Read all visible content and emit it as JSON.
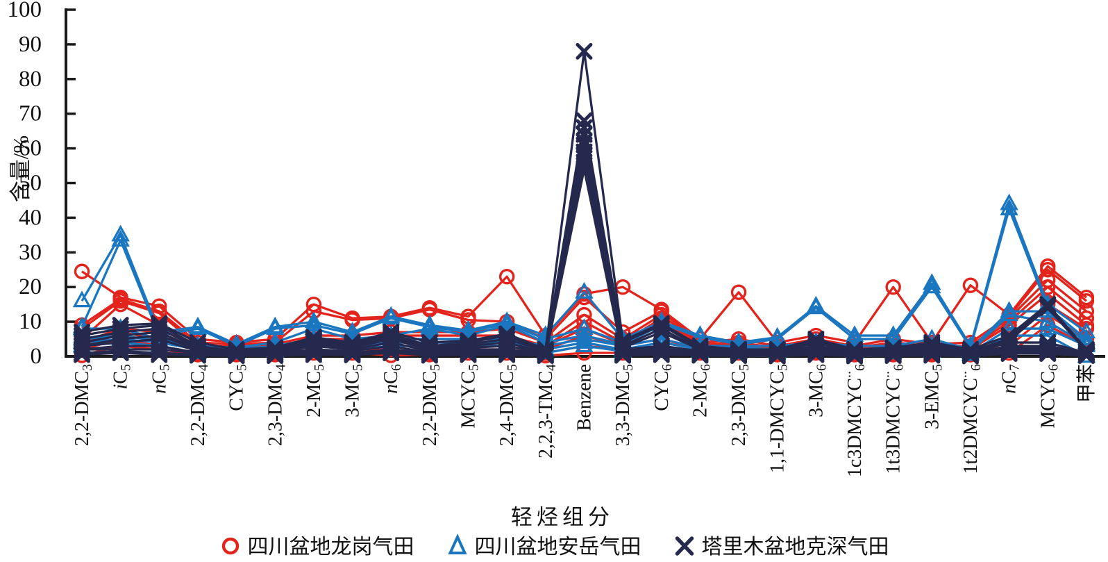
{
  "chart_data": {
    "type": "line",
    "title": "",
    "xlabel": "轻烃组分",
    "ylabel": "含量/%",
    "ylim": [
      0,
      100
    ],
    "yticks": [
      0,
      10,
      20,
      30,
      40,
      50,
      60,
      70,
      80,
      90,
      100
    ],
    "grid": false,
    "legend_position": "bottom",
    "axis_color": "#1a1a1a",
    "categories": [
      [
        {
          "t": "2,2-DMC"
        },
        {
          "t": "3",
          "sub": true
        }
      ],
      [
        {
          "t": "i",
          "i": true
        },
        {
          "t": "C"
        },
        {
          "t": "5",
          "sub": true
        }
      ],
      [
        {
          "t": "n",
          "i": true
        },
        {
          "t": "C"
        },
        {
          "t": "5",
          "sub": true
        }
      ],
      [
        {
          "t": "2,2-DMC"
        },
        {
          "t": "4",
          "sub": true
        }
      ],
      [
        {
          "t": "CYC"
        },
        {
          "t": "5",
          "sub": true
        }
      ],
      [
        {
          "t": "2,3-DMC"
        },
        {
          "t": "4",
          "sub": true
        }
      ],
      [
        {
          "t": "2-MC"
        },
        {
          "t": "5",
          "sub": true
        }
      ],
      [
        {
          "t": "3-MC"
        },
        {
          "t": "5",
          "sub": true
        }
      ],
      [
        {
          "t": "n",
          "i": true
        },
        {
          "t": "C"
        },
        {
          "t": "6",
          "sub": true
        }
      ],
      [
        {
          "t": "2,2-DMC"
        },
        {
          "t": "5",
          "sub": true
        }
      ],
      [
        {
          "t": "MCYC"
        },
        {
          "t": "5",
          "sub": true
        }
      ],
      [
        {
          "t": "2,4-DMC"
        },
        {
          "t": "5",
          "sub": true
        }
      ],
      [
        {
          "t": "2,2,3-TMC"
        },
        {
          "t": "4",
          "sub": true
        }
      ],
      [
        {
          "t": "Benzene"
        }
      ],
      [
        {
          "t": "3,3-DMC"
        },
        {
          "t": "5",
          "sub": true
        }
      ],
      [
        {
          "t": "CYC"
        },
        {
          "t": "6",
          "sub": true
        }
      ],
      [
        {
          "t": "2-MC"
        },
        {
          "t": "6",
          "sub": true
        }
      ],
      [
        {
          "t": "2,3-DMC"
        },
        {
          "t": "5",
          "sub": true
        }
      ],
      [
        {
          "t": "1,1-DMCYC"
        },
        {
          "t": "5",
          "sub": true
        }
      ],
      [
        {
          "t": "3-MC"
        },
        {
          "t": "6",
          "sub": true
        }
      ],
      [
        {
          "t": "1c3DMCYC"
        },
        {
          "t": "..",
          "sup": true
        },
        {
          "t": "6",
          "sub": true
        }
      ],
      [
        {
          "t": "1t3DMCYC"
        },
        {
          "t": "..",
          "sup": true
        },
        {
          "t": "6",
          "sub": true
        }
      ],
      [
        {
          "t": "3-EMC"
        },
        {
          "t": "5",
          "sub": true
        }
      ],
      [
        {
          "t": "1t2DMCYC"
        },
        {
          "t": "..",
          "sup": true
        },
        {
          "t": "6",
          "sub": true
        }
      ],
      [
        {
          "t": "n",
          "i": true
        },
        {
          "t": "C"
        },
        {
          "t": "7",
          "sub": true
        }
      ],
      [
        {
          "t": "MCYC"
        },
        {
          "t": "6",
          "sub": true
        }
      ],
      [
        {
          "t": "甲苯"
        }
      ]
    ],
    "series": [
      {
        "name": "四川盆地龙岗气田",
        "marker": "circle",
        "color": "#e2241d",
        "lines": [
          [
            24.5,
            17,
            14.5,
            5,
            4,
            5,
            15,
            11,
            11.5,
            14,
            11.5,
            23,
            6,
            18,
            20,
            13.5,
            5,
            18.5,
            4,
            6,
            4,
            20,
            4,
            20.5,
            12,
            26,
            17
          ],
          [
            9,
            16.5,
            13,
            4,
            3.5,
            4,
            13,
            10.5,
            11,
            13.5,
            10.5,
            10,
            5,
            17,
            7,
            13,
            4,
            5,
            3,
            5,
            3,
            5,
            3.5,
            4,
            11.5,
            25,
            16
          ],
          [
            8,
            16,
            12.5,
            3,
            3,
            3.5,
            6,
            6,
            7,
            7,
            7,
            8,
            4,
            12,
            5,
            12,
            3.5,
            4,
            2.5,
            4,
            2.5,
            4,
            3,
            3,
            11,
            22,
            13
          ],
          [
            5,
            15,
            9,
            2.5,
            2.5,
            3,
            5,
            5,
            6,
            6,
            6,
            6,
            3,
            10,
            4,
            11,
            3,
            3.5,
            2,
            3.5,
            2,
            3,
            2.5,
            2.5,
            10,
            20,
            11
          ],
          [
            4,
            8,
            7,
            2,
            2,
            2.5,
            4,
            4,
            5,
            5,
            5,
            5,
            3,
            8,
            3.5,
            10.5,
            2.5,
            3,
            2,
            3,
            1.5,
            2.5,
            2,
            2,
            9,
            18,
            9
          ],
          [
            3,
            7,
            5,
            1.5,
            2,
            2,
            3.5,
            3,
            4,
            4,
            4,
            4,
            2,
            6,
            3,
            5,
            2,
            2.5,
            1.5,
            2,
            1,
            2,
            1.5,
            1.5,
            5,
            15,
            8
          ],
          [
            2,
            5,
            3,
            1,
            1,
            1,
            3,
            2,
            2,
            1,
            2,
            2,
            1,
            3,
            2,
            3,
            1.5,
            2,
            1,
            1.5,
            1,
            1,
            1,
            1,
            3,
            12,
            5
          ],
          [
            0.3,
            3,
            2,
            0.5,
            0.5,
            0.5,
            1,
            1,
            0.3,
            0.5,
            1,
            1,
            0.2,
            1,
            1,
            2,
            1,
            1,
            0.5,
            1,
            0.5,
            0.5,
            0.5,
            0.5,
            1,
            9,
            3
          ]
        ]
      },
      {
        "name": "四川盆地安岳气田",
        "marker": "triangle",
        "color": "#1b76c0",
        "lines": [
          [
            16,
            35,
            7,
            8.5,
            3.5,
            8.5,
            10,
            7,
            11.5,
            9,
            7.5,
            10,
            6,
            18.5,
            5,
            10,
            6,
            4,
            5.5,
            14.5,
            6,
            6,
            21,
            3,
            44,
            15,
            7
          ],
          [
            8.5,
            33.5,
            6,
            8,
            3,
            8,
            9,
            6.5,
            11,
            8.5,
            7,
            9.5,
            5,
            8,
            4,
            9.5,
            5.5,
            3.5,
            5,
            14,
            5,
            5,
            20,
            2.5,
            42.5,
            14,
            5
          ],
          [
            8,
            8,
            5,
            3,
            2.5,
            4,
            8,
            5,
            6,
            8,
            6,
            9,
            4,
            6,
            3.5,
            9,
            3,
            3,
            3,
            4,
            3,
            3,
            5,
            2,
            13,
            13,
            4
          ],
          [
            5,
            6,
            4.5,
            2.5,
            2,
            3,
            5,
            4,
            5,
            5,
            5,
            5,
            3,
            5,
            3,
            5,
            2.5,
            2.5,
            2,
            3,
            2,
            2.5,
            3,
            1.5,
            12,
            10,
            3.5
          ],
          [
            4,
            5,
            4,
            2,
            2,
            2,
            4,
            3,
            4,
            4,
            4,
            4,
            2,
            4,
            2,
            4,
            2,
            2,
            1.5,
            2.5,
            1.5,
            2,
            2,
            1,
            8,
            8,
            3
          ],
          [
            3,
            4,
            3,
            1,
            1,
            1.5,
            3,
            2,
            3,
            3,
            3,
            3,
            1,
            3,
            1.5,
            3,
            1.5,
            1,
            1,
            2,
            1,
            1,
            1.5,
            0.5,
            6,
            6,
            0
          ]
        ]
      },
      {
        "name": "塔里木盆地克深气田",
        "marker": "x",
        "color": "#25294e",
        "lines": [
          [
            7,
            9,
            9.5,
            4,
            2,
            2.5,
            5.5,
            4,
            7,
            4,
            4.5,
            6.5,
            2,
            88,
            4.5,
            9.5,
            3,
            2,
            2,
            5,
            2,
            2.5,
            4,
            2,
            6,
            15,
            2
          ],
          [
            6,
            8,
            9,
            3,
            1.5,
            2,
            5,
            3.5,
            6.5,
            3,
            4,
            6,
            1.5,
            68,
            4,
            9,
            2.5,
            1.5,
            1.5,
            4.5,
            1.5,
            2,
            3.5,
            1.5,
            5,
            14.5,
            1.5
          ],
          [
            5,
            7,
            8,
            2.5,
            1.5,
            2,
            4.5,
            3,
            6,
            2.5,
            3.5,
            5,
            1.5,
            66,
            3,
            8,
            2,
            1.5,
            1,
            4,
            1,
            1.5,
            3,
            1,
            4.5,
            14,
            1.5
          ],
          [
            4,
            6,
            7,
            2,
            1,
            1.5,
            4,
            3,
            5.5,
            2,
            3,
            4,
            1,
            64,
            2.5,
            7,
            2,
            1,
            1,
            3,
            1,
            1,
            2.5,
            1,
            4,
            4,
            1
          ],
          [
            3,
            5,
            6,
            2,
            1,
            1.5,
            3.5,
            2.5,
            5,
            2,
            2.5,
            3,
            1,
            62,
            2,
            3,
            1.5,
            1,
            0.8,
            2.5,
            0.8,
            1,
            2,
            0.8,
            3,
            3,
            1
          ],
          [
            3,
            4,
            5,
            1.5,
            1,
            1,
            3,
            2,
            4,
            1.5,
            2,
            2,
            0.8,
            61,
            1.5,
            2.5,
            1,
            0.8,
            0.5,
            2,
            0.5,
            0.8,
            1.5,
            0.5,
            2.5,
            2.5,
            0.8
          ],
          [
            2,
            3,
            3,
            1,
            0.8,
            1,
            2,
            1.5,
            3,
            1,
            1.5,
            1.5,
            0.5,
            59,
            1,
            2,
            1,
            0.5,
            0.5,
            1.5,
            0.5,
            0.5,
            1,
            0.4,
            2,
            2,
            0.5
          ],
          [
            2,
            2,
            2,
            1,
            0.5,
            0.5,
            1.5,
            1,
            2,
            1,
            1,
            1,
            0.4,
            58,
            0.8,
            1.5,
            0.8,
            0.5,
            0.3,
            1,
            0.3,
            0.4,
            0.8,
            0.3,
            1.5,
            1.5,
            0.5
          ],
          [
            1,
            1.5,
            1,
            0.5,
            0.3,
            0.4,
            1,
            0.8,
            1.5,
            0.5,
            0.8,
            0.8,
            0.3,
            56,
            0.5,
            1,
            0.5,
            0.3,
            0.2,
            0.8,
            0.2,
            0.3,
            0.5,
            0.2,
            1,
            1,
            0.3
          ],
          [
            0.5,
            1,
            0.5,
            0.3,
            0.2,
            0.2,
            0.5,
            0.4,
            1,
            0.3,
            0.5,
            0.5,
            0.2,
            54,
            0.3,
            0.5,
            0.3,
            0.2,
            0.1,
            0.5,
            0.1,
            0.2,
            0.3,
            0.1,
            0.8,
            0.8,
            0.2
          ]
        ]
      }
    ]
  }
}
